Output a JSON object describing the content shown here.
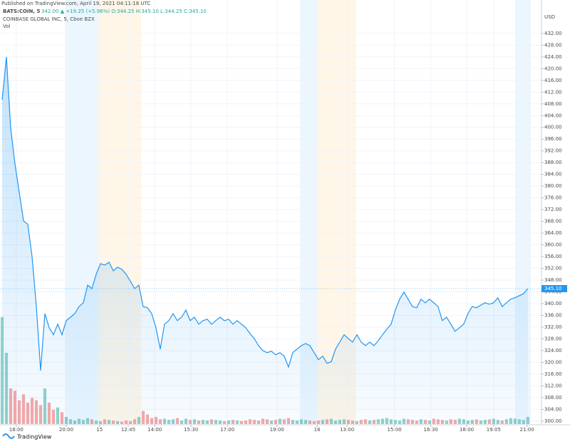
{
  "header": {
    "published": "Published on TradingView.com, April 19, 2021 04:11:18 UTC"
  },
  "chart_data": {
    "type": "area",
    "symbol": "BATS:COIN, 5",
    "quote": "342.00 ▲ +19.25 (+5.96%) O:344.25 H:345.10 L:344.25 C:345.10",
    "title": "COINBASE GLOBAL INC, 5, Cboe BZX",
    "volume_label": "Vol",
    "currency": "USD",
    "last_price_label": "345.10",
    "footer": "TradingView",
    "color": "#2196f3",
    "up_color": "#26a69a",
    "down_color": "#ef5350",
    "grid": true,
    "xlim": [
      -0.5,
      126.2
    ],
    "ylim": [
      299,
      439
    ],
    "xticks": [
      {
        "value": 3.3,
        "label": "18:00"
      },
      {
        "value": 15,
        "label": "20:00"
      },
      {
        "value": 22.8,
        "label": "15"
      },
      {
        "value": 29.5,
        "label": "12:45"
      },
      {
        "value": 35.7,
        "label": "14:00"
      },
      {
        "value": 44.2,
        "label": "15:30"
      },
      {
        "value": 52.7,
        "label": "17:00"
      },
      {
        "value": 64.3,
        "label": "19:00"
      },
      {
        "value": 73.7,
        "label": "16"
      },
      {
        "value": 80.7,
        "label": "13:00"
      },
      {
        "value": 91.8,
        "label": "15:00"
      },
      {
        "value": 100.3,
        "label": "16:30"
      },
      {
        "value": 108.7,
        "label": "18:00"
      },
      {
        "value": 115,
        "label": "19:05"
      },
      {
        "value": 122.8,
        "label": "21:00"
      }
    ],
    "yticks": [
      {
        "value": 300,
        "label": "300.00"
      },
      {
        "value": 304,
        "label": "304.00"
      },
      {
        "value": 308,
        "label": "308.00"
      },
      {
        "value": 312,
        "label": "312.00"
      },
      {
        "value": 316,
        "label": "316.00"
      },
      {
        "value": 320,
        "label": "320.00"
      },
      {
        "value": 324,
        "label": "324.00"
      },
      {
        "value": 328,
        "label": "328.00"
      },
      {
        "value": 332,
        "label": "332.00"
      },
      {
        "value": 336,
        "label": "336.00"
      },
      {
        "value": 340,
        "label": "340.00"
      },
      {
        "value": 344,
        "label": "344.00"
      },
      {
        "value": 348,
        "label": "348.00"
      },
      {
        "value": 352,
        "label": "352.00"
      },
      {
        "value": 356,
        "label": "356.00"
      },
      {
        "value": 360,
        "label": "360.00"
      },
      {
        "value": 364,
        "label": "364.00"
      },
      {
        "value": 368,
        "label": "368.00"
      },
      {
        "value": 372,
        "label": "372.00"
      },
      {
        "value": 376,
        "label": "376.00"
      },
      {
        "value": 380,
        "label": "380.00"
      },
      {
        "value": 384,
        "label": "384.00"
      },
      {
        "value": 388,
        "label": "388.00"
      },
      {
        "value": 392,
        "label": "392.00"
      },
      {
        "value": 396,
        "label": "396.00"
      },
      {
        "value": 400,
        "label": "400.00"
      },
      {
        "value": 404,
        "label": "404.00"
      },
      {
        "value": 408,
        "label": "408.00"
      },
      {
        "value": 412,
        "label": "412.00"
      },
      {
        "value": 416,
        "label": "416.00"
      },
      {
        "value": 420,
        "label": "420.00"
      },
      {
        "value": 424,
        "label": "424.00"
      },
      {
        "value": 428,
        "label": "428.00"
      },
      {
        "value": 432,
        "label": "432.00"
      }
    ],
    "sessions": [
      {
        "start": 14.7,
        "end": 22.5,
        "color": "#2196f3"
      },
      {
        "start": 22.5,
        "end": 32.5,
        "color": "#ff9800"
      },
      {
        "start": 69.7,
        "end": 73.7,
        "color": "#2196f3"
      },
      {
        "start": 73.7,
        "end": 82.8,
        "color": "#ff9800"
      },
      {
        "start": 120,
        "end": 123.7,
        "color": "#2196f3"
      }
    ],
    "values": [
      409.4,
      424,
      399.7,
      387.6,
      377.9,
      368.2,
      367,
      356,
      339,
      317.2,
      336.6,
      331.8,
      329.4,
      333,
      329.4,
      334.2,
      335.4,
      336.6,
      339,
      340.3,
      346.3,
      345.1,
      350,
      353.6,
      353.1,
      354.1,
      351.2,
      352.4,
      351.7,
      350,
      347.6,
      345.1,
      346.3,
      339,
      338.6,
      336.6,
      331.8,
      324.5,
      333,
      334.2,
      336.6,
      334.2,
      335.4,
      337.8,
      334.2,
      335.4,
      333,
      334.2,
      334.7,
      333,
      334.2,
      335.4,
      334.2,
      334.7,
      333,
      334.2,
      333,
      331.8,
      329.8,
      328.1,
      325.7,
      324,
      323.3,
      323.8,
      322.6,
      323.3,
      322.1,
      318.4,
      323.3,
      324.5,
      325.7,
      326.4,
      325.7,
      323.3,
      320.9,
      322.1,
      319.7,
      320.2,
      324.5,
      326.9,
      329.4,
      328.1,
      326.9,
      329.4,
      326.9,
      325.7,
      326.9,
      325.7,
      327.4,
      329.4,
      331.3,
      333,
      337.8,
      341.5,
      343.9,
      341.5,
      339,
      338.6,
      341.5,
      340.3,
      341.5,
      340.3,
      339,
      334.2,
      335.4,
      333,
      330.6,
      331.8,
      333,
      336.6,
      339,
      338.6,
      339.5,
      340.3,
      339.8,
      340.3,
      342,
      339,
      340.3,
      341.5,
      342,
      342.7,
      343.4,
      345.1
    ],
    "volume": [
      900,
      600,
      300,
      280,
      200,
      250,
      180,
      220,
      200,
      160,
      300,
      180,
      120,
      140,
      100,
      60,
      40,
      30,
      45,
      35,
      50,
      40,
      30,
      25,
      40,
      35,
      30,
      25,
      20,
      30,
      25,
      40,
      60,
      110,
      80,
      50,
      60,
      40,
      45,
      35,
      40,
      50,
      30,
      45,
      35,
      40,
      30,
      35,
      30,
      40,
      35,
      30,
      25,
      30,
      35,
      30,
      25,
      30,
      40,
      35,
      30,
      45,
      40,
      30,
      35,
      45,
      40,
      50,
      35,
      30,
      40,
      35,
      30,
      25,
      30,
      35,
      40,
      45,
      30,
      35,
      40,
      35,
      30,
      25,
      35,
      40,
      30,
      35,
      40,
      45,
      50,
      40,
      35,
      30,
      45,
      40,
      35,
      30,
      40,
      35,
      30,
      45,
      40,
      35,
      30,
      40,
      35,
      45,
      40,
      30,
      35,
      40,
      30,
      35,
      40,
      45,
      35,
      30,
      40,
      50,
      45,
      40,
      35,
      60
    ]
  }
}
